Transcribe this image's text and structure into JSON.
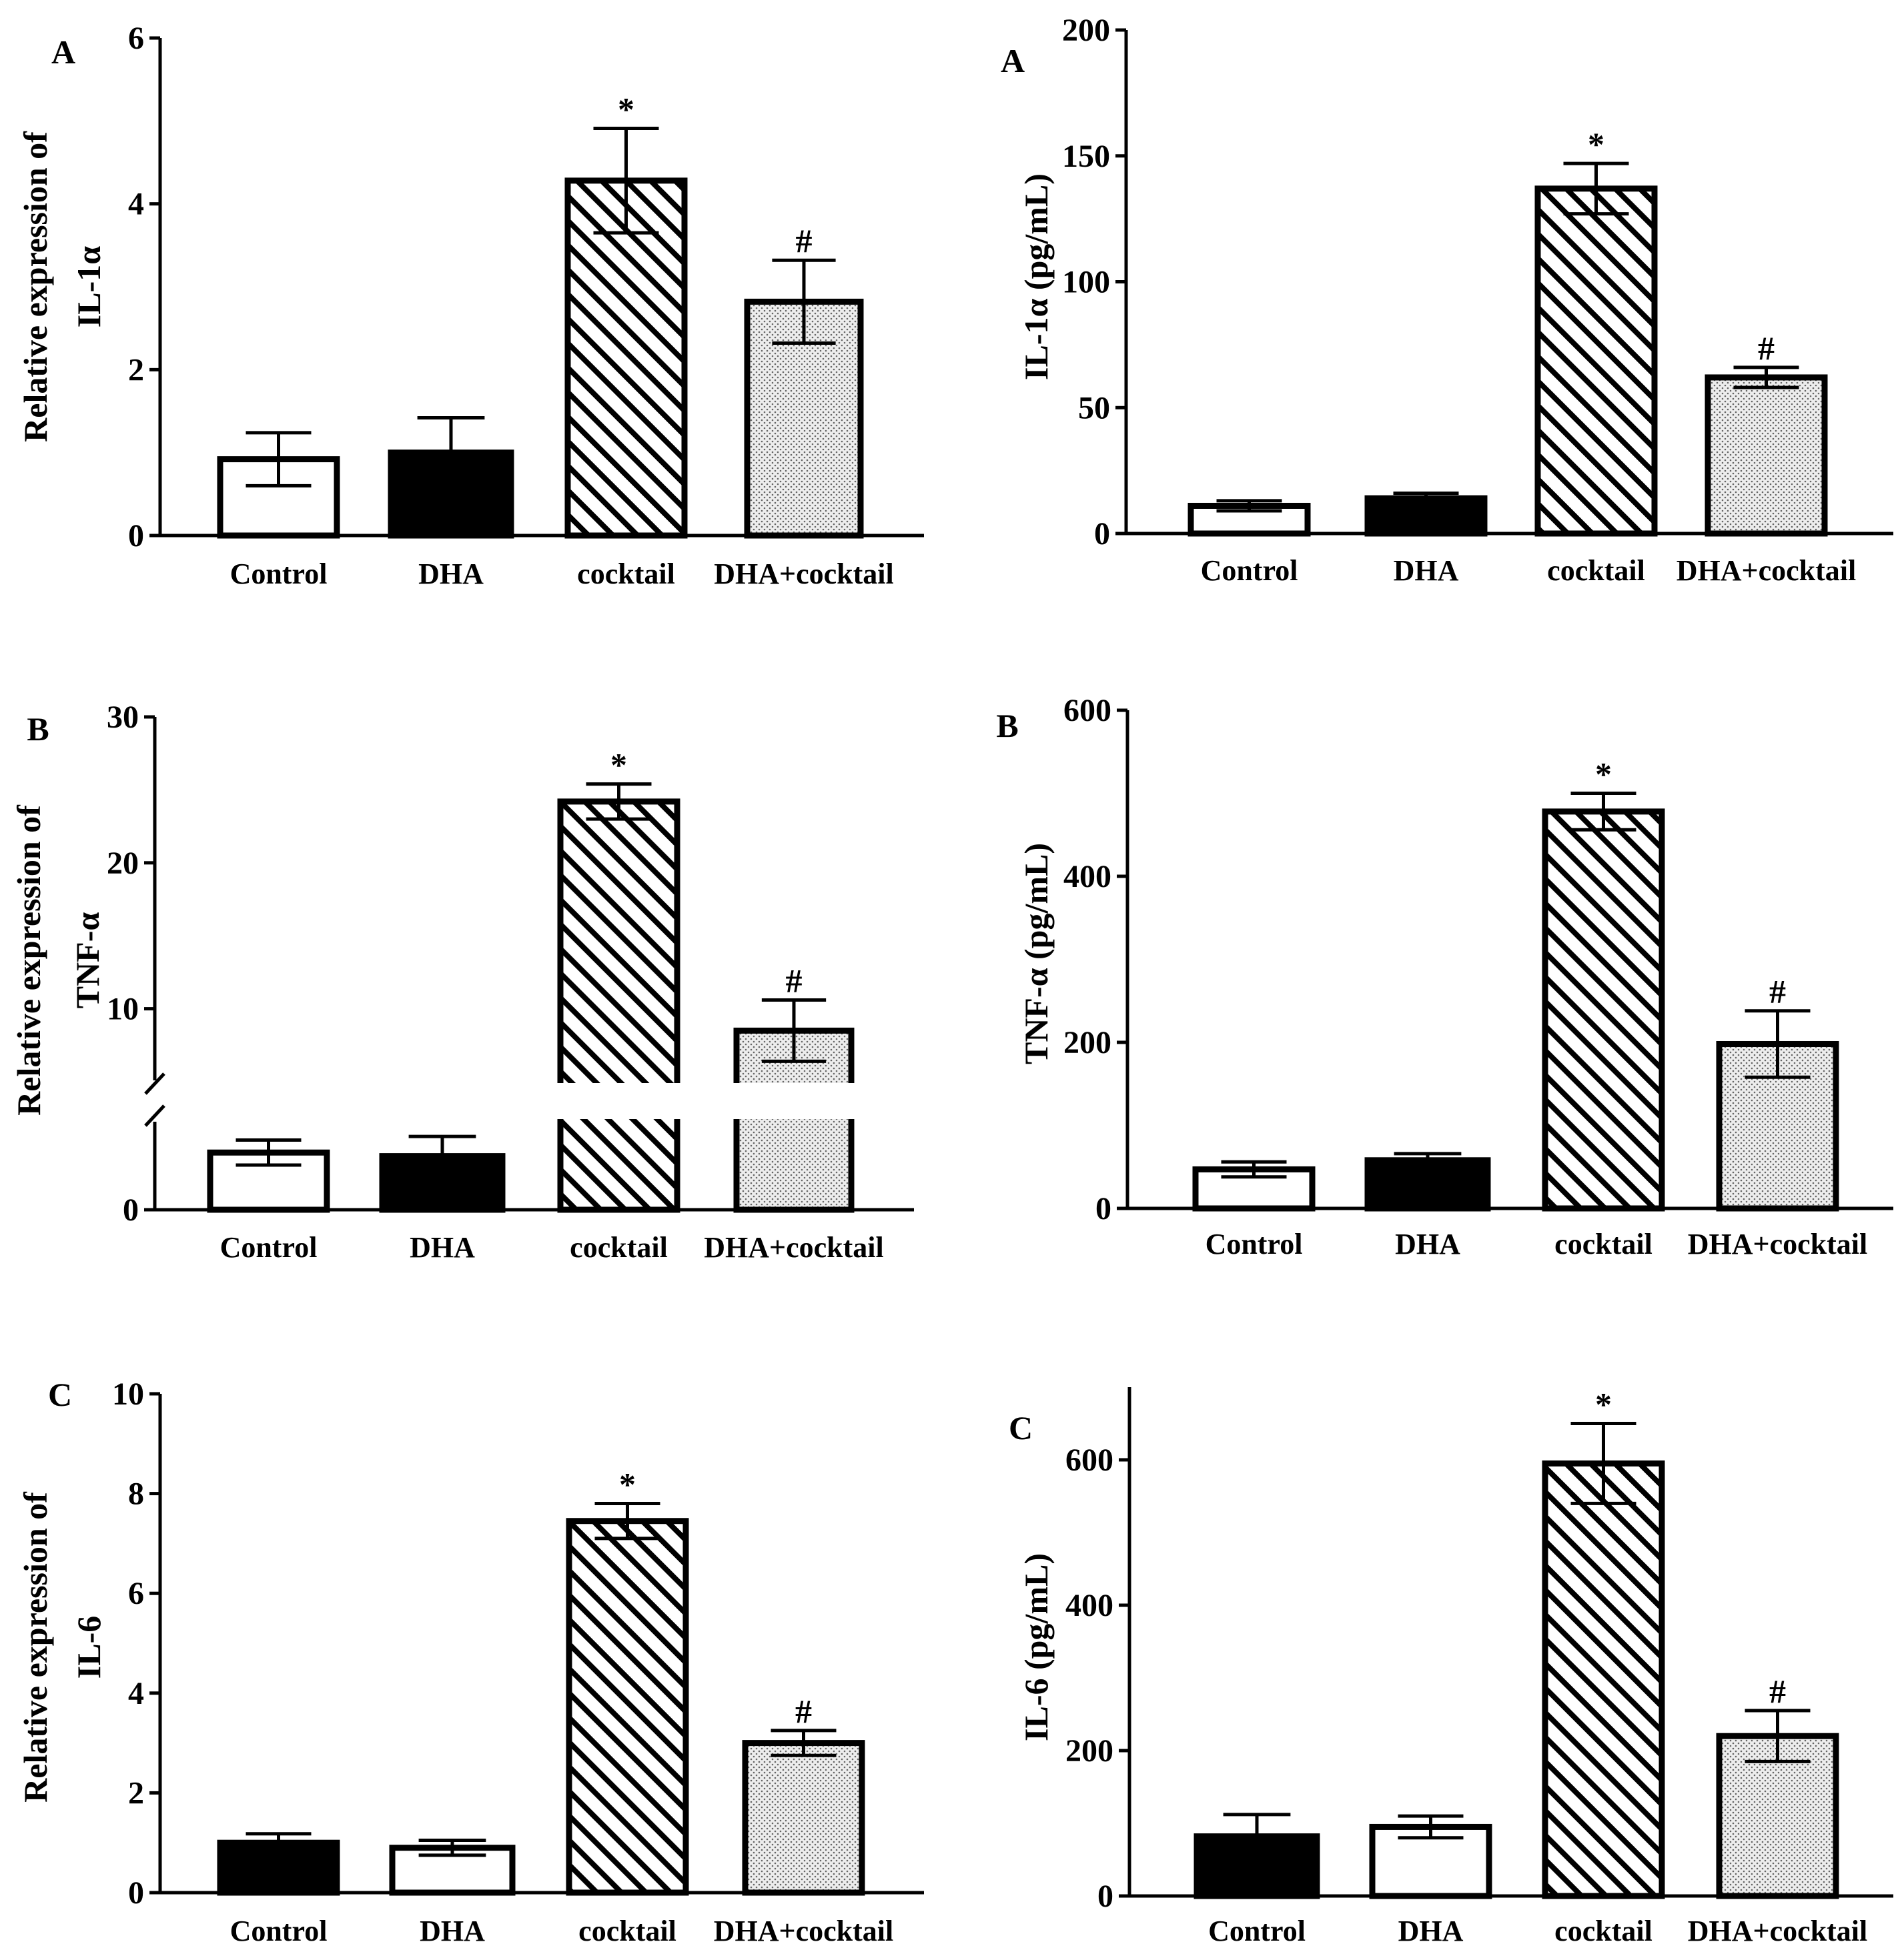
{
  "figure": {
    "categories": [
      "Control",
      "DHA",
      "cocktail",
      "DHA+cocktail"
    ]
  },
  "chart_data": [
    {
      "type": "bar",
      "panel_letter": "A",
      "ylabel_line1": "Relative expression of",
      "ylabel_line2": "IL-1α",
      "categories": [
        "Control",
        "DHA",
        "cocktail",
        "DHA+cocktail"
      ],
      "values": [
        0.92,
        1.0,
        4.28,
        2.82
      ],
      "errors": [
        0.32,
        0.42,
        0.63,
        0.5
      ],
      "fills": [
        "white",
        "black",
        "hatch",
        "dots"
      ],
      "annotations": [
        "",
        "",
        "*",
        "#"
      ],
      "ylim": [
        0,
        6
      ],
      "yticks": [
        "0",
        "2",
        "4",
        "6"
      ],
      "ytick_values": [
        0,
        2,
        4,
        6
      ]
    },
    {
      "type": "bar",
      "panel_letter": "A",
      "ylabel_line1": "IL-1α (pg/mL)",
      "ylabel_line2": "",
      "categories": [
        "Control",
        "DHA",
        "cocktail",
        "DHA+cocktail"
      ],
      "values": [
        11,
        14,
        137,
        62
      ],
      "errors": [
        2,
        2,
        10,
        4
      ],
      "fills": [
        "white",
        "black",
        "hatch",
        "dots"
      ],
      "annotations": [
        "",
        "",
        "*",
        "#"
      ],
      "ylim": [
        0,
        200
      ],
      "yticks": [
        "0",
        "50",
        "100",
        "150",
        "200"
      ],
      "ytick_values": [
        0,
        50,
        100,
        150,
        200
      ]
    },
    {
      "type": "bar",
      "panel_letter": "B",
      "ylabel_line1": "Relative expression of",
      "ylabel_line2": "TNF-α",
      "categories": [
        "Control",
        "DHA",
        "cocktail",
        "DHA+cocktail"
      ],
      "values": [
        3.2,
        3.0,
        24.2,
        8.5
      ],
      "errors": [
        0.7,
        1.1,
        1.2,
        2.1
      ],
      "fills": [
        "white",
        "black",
        "hatch",
        "dots"
      ],
      "annotations": [
        "",
        "",
        "*",
        "#"
      ],
      "ylim": [
        0,
        30
      ],
      "axis_break": [
        5,
        5
      ],
      "yticks": [
        "0",
        "10",
        "20",
        "30"
      ],
      "ytick_values": [
        0,
        10,
        20,
        30
      ]
    },
    {
      "type": "bar",
      "panel_letter": "B",
      "ylabel_line1": "TNF-α  (pg/mL)",
      "ylabel_line2": "",
      "categories": [
        "Control",
        "DHA",
        "cocktail",
        "DHA+cocktail"
      ],
      "values": [
        47,
        58,
        478,
        198
      ],
      "errors": [
        9,
        8,
        22,
        40
      ],
      "fills": [
        "white",
        "black",
        "hatch",
        "dots"
      ],
      "annotations": [
        "",
        "",
        "*",
        "#"
      ],
      "ylim": [
        0,
        600
      ],
      "yticks": [
        "0",
        "200",
        "400",
        "600"
      ],
      "ytick_values": [
        0,
        200,
        400,
        600
      ]
    },
    {
      "type": "bar",
      "panel_letter": "C",
      "ylabel_line1": "Relative expression of",
      "ylabel_line2": "IL-6",
      "categories": [
        "Control",
        "DHA",
        "cocktail",
        "DHA+cocktail"
      ],
      "values": [
        1.0,
        0.9,
        7.45,
        3.0
      ],
      "errors": [
        0.18,
        0.15,
        0.35,
        0.25
      ],
      "fills": [
        "black",
        "white",
        "hatch",
        "dots"
      ],
      "annotations": [
        "",
        "",
        "*",
        "#"
      ],
      "ylim": [
        0,
        10
      ],
      "yticks": [
        "0",
        "2",
        "4",
        "6",
        "8",
        "10"
      ],
      "ytick_values": [
        0,
        2,
        4,
        6,
        8,
        10
      ]
    },
    {
      "type": "bar",
      "panel_letter": "C",
      "ylabel_line1": "IL-6 (pg/mL)",
      "ylabel_line2": "",
      "categories": [
        "Control",
        "DHA",
        "cocktail",
        "DHA+cocktail"
      ],
      "values": [
        82,
        95,
        595,
        220
      ],
      "errors": [
        30,
        15,
        55,
        35
      ],
      "fills": [
        "black",
        "white",
        "hatch",
        "dots"
      ],
      "annotations": [
        "",
        "",
        "*",
        "#"
      ],
      "ylim": [
        0,
        700
      ],
      "yticks": [
        "0",
        "200",
        "400",
        "600"
      ],
      "ytick_values": [
        0,
        200,
        400,
        600
      ]
    }
  ]
}
